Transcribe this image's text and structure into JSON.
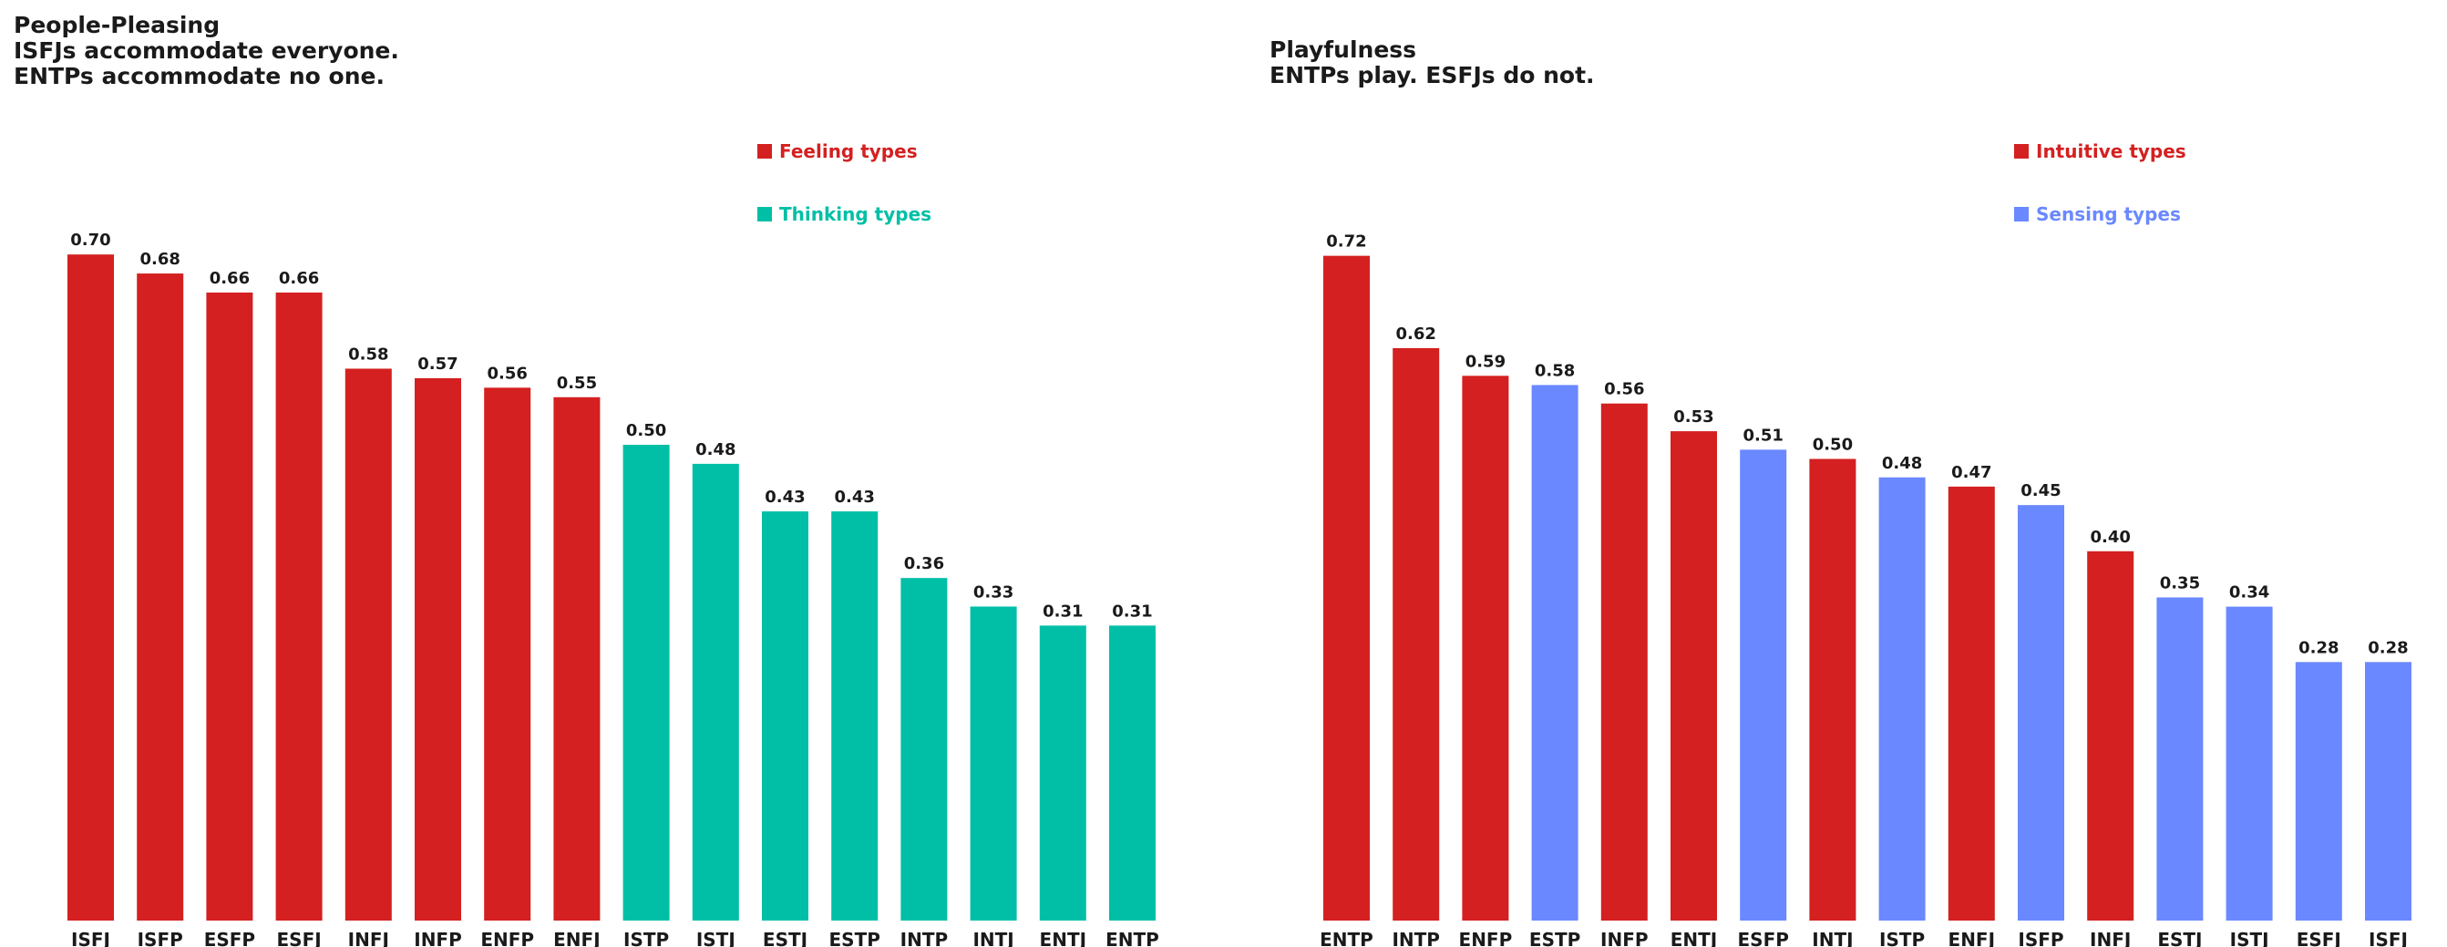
{
  "chart_data": [
    {
      "type": "bar",
      "title_lines": [
        "People-Pleasing",
        "ISFJs accommodate everyone.",
        "ENTPs accommodate no one."
      ],
      "xlabel": "",
      "ylabel": "",
      "ylim": [
        0,
        0.75
      ],
      "grid": false,
      "legend_position": "top-right",
      "legend": [
        {
          "label": "Feeling types",
          "color": "#d42020"
        },
        {
          "label": "Thinking types",
          "color": "#00bfa6"
        }
      ],
      "categories": [
        "ISFJ",
        "ISFP",
        "ESFP",
        "ESFJ",
        "INFJ",
        "INFP",
        "ENFP",
        "ENFJ",
        "ISTP",
        "ISTJ",
        "ESTJ",
        "ESTP",
        "INTP",
        "INTJ",
        "ENTJ",
        "ENTP"
      ],
      "values": [
        0.7,
        0.68,
        0.66,
        0.66,
        0.58,
        0.57,
        0.56,
        0.55,
        0.5,
        0.48,
        0.43,
        0.43,
        0.36,
        0.33,
        0.31,
        0.31
      ],
      "value_labels": [
        "0.70",
        "0.68",
        "0.66",
        "0.66",
        "0.58",
        "0.57",
        "0.56",
        "0.55",
        "0.50",
        "0.48",
        "0.43",
        "0.43",
        "0.36",
        "0.33",
        "0.31",
        "0.31"
      ],
      "groups": [
        0,
        0,
        0,
        0,
        0,
        0,
        0,
        0,
        1,
        1,
        1,
        1,
        1,
        1,
        1,
        1
      ]
    },
    {
      "type": "bar",
      "title_lines": [
        "Playfulness",
        "ENTPs play. ESFJs do not."
      ],
      "xlabel": "",
      "ylabel": "",
      "ylim": [
        0,
        0.75
      ],
      "grid": false,
      "legend_position": "top-right",
      "legend": [
        {
          "label": "Intuitive types",
          "color": "#d42020"
        },
        {
          "label": "Sensing types",
          "color": "#6a88ff"
        }
      ],
      "categories": [
        "ENTP",
        "INTP",
        "ENFP",
        "ESTP",
        "INFP",
        "ENTJ",
        "ESFP",
        "INTJ",
        "ISTP",
        "ENFJ",
        "ISFP",
        "INFJ",
        "ESTJ",
        "ISTJ",
        "ESFJ",
        "ISFJ"
      ],
      "values": [
        0.72,
        0.62,
        0.59,
        0.58,
        0.56,
        0.53,
        0.51,
        0.5,
        0.48,
        0.47,
        0.45,
        0.4,
        0.35,
        0.34,
        0.28,
        0.28
      ],
      "value_labels": [
        "0.72",
        "0.62",
        "0.59",
        "0.58",
        "0.56",
        "0.53",
        "0.51",
        "0.50",
        "0.48",
        "0.47",
        "0.45",
        "0.40",
        "0.35",
        "0.34",
        "0.28",
        "0.28"
      ],
      "groups": [
        0,
        0,
        0,
        1,
        0,
        0,
        1,
        0,
        1,
        0,
        1,
        0,
        1,
        1,
        1,
        1
      ]
    }
  ]
}
